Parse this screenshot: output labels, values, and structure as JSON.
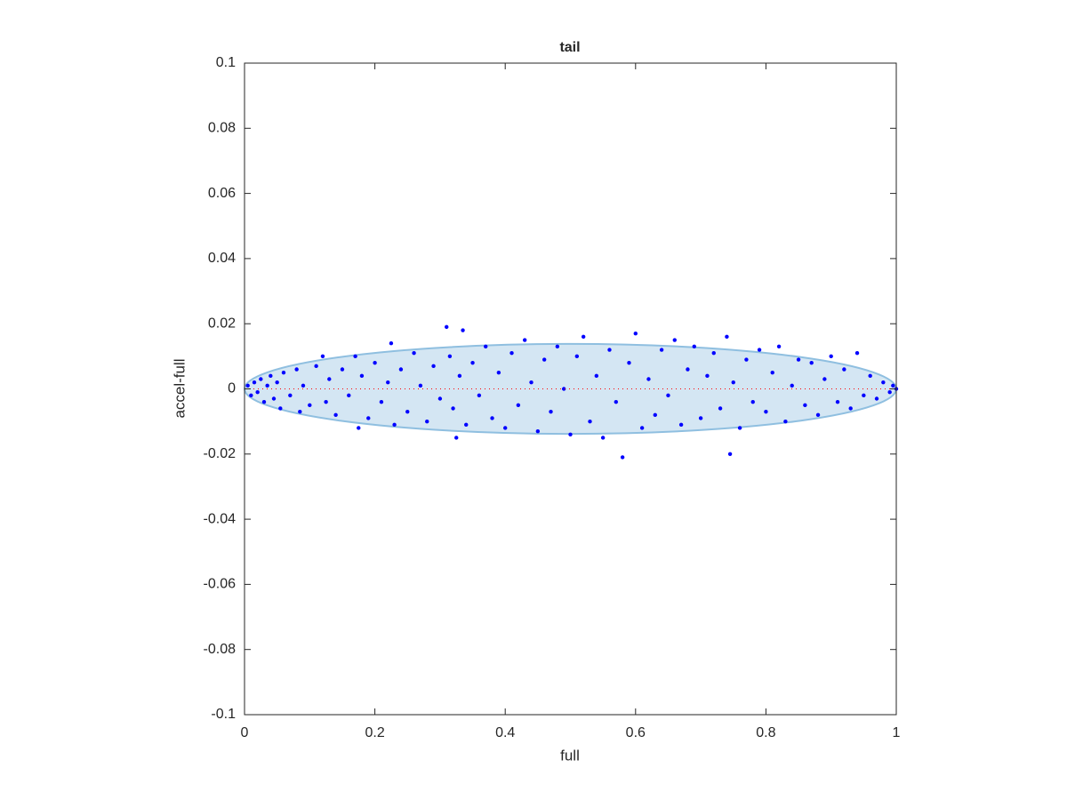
{
  "chart_data": {
    "type": "scatter",
    "title": "tail",
    "xlabel": "full",
    "ylabel": "accel-full",
    "x": [
      0.005,
      0.01,
      0.015,
      0.02,
      0.025,
      0.03,
      0.035,
      0.04,
      0.045,
      0.05,
      0.055,
      0.06,
      0.07,
      0.08,
      0.085,
      0.09,
      0.1,
      0.11,
      0.12,
      0.125,
      0.13,
      0.14,
      0.15,
      0.16,
      0.17,
      0.175,
      0.18,
      0.19,
      0.2,
      0.21,
      0.22,
      0.225,
      0.23,
      0.24,
      0.25,
      0.26,
      0.27,
      0.28,
      0.29,
      0.3,
      0.31,
      0.315,
      0.32,
      0.325,
      0.33,
      0.335,
      0.34,
      0.35,
      0.36,
      0.37,
      0.38,
      0.39,
      0.4,
      0.41,
      0.42,
      0.43,
      0.44,
      0.45,
      0.46,
      0.47,
      0.48,
      0.49,
      0.5,
      0.51,
      0.52,
      0.53,
      0.54,
      0.55,
      0.56,
      0.57,
      0.58,
      0.59,
      0.6,
      0.61,
      0.62,
      0.63,
      0.64,
      0.65,
      0.66,
      0.67,
      0.68,
      0.69,
      0.7,
      0.71,
      0.72,
      0.73,
      0.74,
      0.745,
      0.75,
      0.76,
      0.77,
      0.78,
      0.79,
      0.8,
      0.81,
      0.82,
      0.83,
      0.84,
      0.85,
      0.86,
      0.87,
      0.88,
      0.89,
      0.9,
      0.91,
      0.92,
      0.93,
      0.94,
      0.95,
      0.96,
      0.97,
      0.98,
      0.99,
      0.995,
      1.0
    ],
    "values": [
      0.001,
      -0.002,
      0.002,
      -0.001,
      0.003,
      -0.004,
      0.001,
      0.004,
      -0.003,
      0.002,
      -0.006,
      0.005,
      -0.002,
      0.006,
      -0.007,
      0.001,
      -0.005,
      0.007,
      0.01,
      -0.004,
      0.003,
      -0.008,
      0.006,
      -0.002,
      0.01,
      -0.012,
      0.004,
      -0.009,
      0.008,
      -0.004,
      0.002,
      0.014,
      -0.011,
      0.006,
      -0.007,
      0.011,
      0.001,
      -0.01,
      0.007,
      -0.003,
      0.019,
      0.01,
      -0.006,
      -0.015,
      0.004,
      0.018,
      -0.011,
      0.008,
      -0.002,
      0.013,
      -0.009,
      0.005,
      -0.012,
      0.011,
      -0.005,
      0.015,
      0.002,
      -0.013,
      0.009,
      -0.007,
      0.013,
      0.0,
      -0.014,
      0.01,
      0.016,
      -0.01,
      0.004,
      -0.015,
      0.012,
      -0.004,
      -0.021,
      0.008,
      0.017,
      -0.012,
      0.003,
      -0.008,
      0.012,
      -0.002,
      0.015,
      -0.011,
      0.006,
      0.013,
      -0.009,
      0.004,
      0.011,
      -0.006,
      0.016,
      -0.02,
      0.002,
      -0.012,
      0.009,
      -0.004,
      0.012,
      -0.007,
      0.005,
      0.013,
      -0.01,
      0.001,
      0.009,
      -0.005,
      0.008,
      -0.008,
      0.003,
      0.01,
      -0.004,
      0.006,
      -0.006,
      0.011,
      -0.002,
      0.004,
      -0.003,
      0.002,
      -0.001,
      0.001,
      0.0
    ],
    "color": "#0000ff",
    "ellipse": {
      "cx": 0.5,
      "cy": 0,
      "rx": 0.5,
      "ry": 0.0138,
      "fill": "#d4e6f3",
      "stroke": "#8fbfe0"
    },
    "reference_line": {
      "y": 0,
      "color": "#ff0000"
    },
    "xlim": [
      0,
      1
    ],
    "xticks": [
      0,
      0.2,
      0.4,
      0.6,
      0.8,
      1
    ],
    "ylim": [
      -0.1,
      0.1
    ],
    "yticks": [
      -0.1,
      -0.08,
      -0.06,
      -0.04,
      -0.02,
      0,
      0.02,
      0.04,
      0.06,
      0.08,
      0.1
    ]
  }
}
